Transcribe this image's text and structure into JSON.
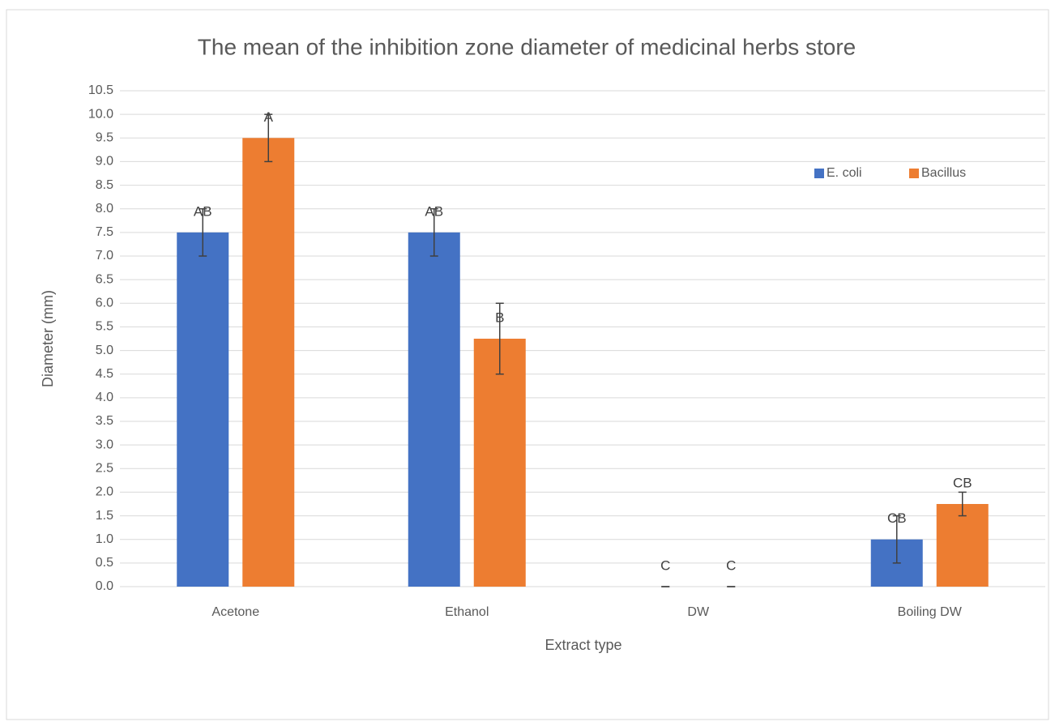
{
  "chart_data": {
    "type": "bar",
    "title": "The mean of the inhibition zone diameter of medicinal herbs store",
    "x_label": "Extract type",
    "y_label": "Diameter (mm)",
    "categories": [
      "Acetone",
      "Ethanol",
      "DW",
      "Boiling DW"
    ],
    "series": [
      {
        "name": "E. coli",
        "color": "#4472c4",
        "values": [
          7.5,
          7.5,
          0,
          1
        ],
        "errors": [
          0.5,
          0.5,
          0,
          0.5
        ],
        "annotations": [
          "AB",
          "AB",
          "C",
          "CB"
        ]
      },
      {
        "name": "Bacillus",
        "color": "#ed7d31",
        "values": [
          9.5,
          5.25,
          0,
          1.75
        ],
        "errors": [
          0.5,
          0.75,
          0,
          0.25
        ],
        "annotations": [
          "A",
          "B",
          "C",
          "CB"
        ]
      }
    ],
    "ylim": [
      0,
      10.5
    ],
    "yticks": [
      {
        "value": 0,
        "label": "0.0"
      },
      0.5,
      {
        "value": 1,
        "label": "1.0"
      },
      1.5,
      {
        "value": 2,
        "label": "2.0"
      },
      2.5,
      {
        "value": 3,
        "label": "3.0"
      },
      3.5,
      {
        "value": 4,
        "label": "4.0"
      },
      4.5,
      {
        "value": 5,
        "label": "5.0"
      },
      5.5,
      {
        "value": 6,
        "label": "6.0"
      },
      6.5,
      {
        "value": 7,
        "label": "7.0"
      },
      7.5,
      {
        "value": 8,
        "label": "8.0"
      },
      8.5,
      {
        "value": 9,
        "label": "9.0"
      },
      9.5,
      {
        "value": 10,
        "label": "10.0"
      },
      10.5
    ],
    "grid": true,
    "legend": "upper right"
  }
}
